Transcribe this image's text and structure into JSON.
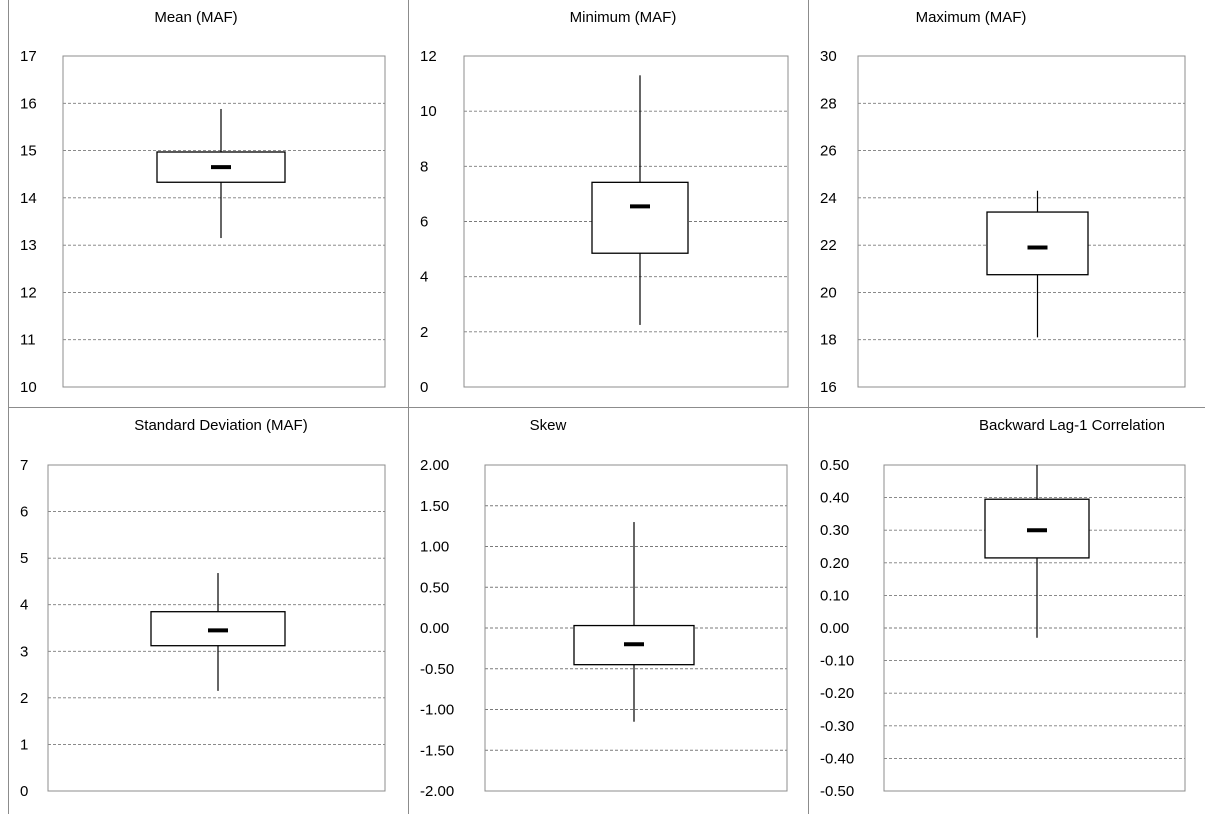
{
  "chart_data": [
    {
      "type": "box",
      "title": "Mean (MAF)",
      "ylim": [
        10,
        17
      ],
      "ticks": [
        "10",
        "11",
        "12",
        "13",
        "14",
        "15",
        "16",
        "17"
      ],
      "box": {
        "whisker_low": 13.15,
        "q1": 14.33,
        "median": 14.65,
        "q3": 14.97,
        "whisker_high": 15.88
      },
      "grid": true
    },
    {
      "type": "box",
      "title": "Minimum (MAF)",
      "ylim": [
        0,
        12
      ],
      "ticks": [
        "0",
        "2",
        "4",
        "6",
        "8",
        "10",
        "12"
      ],
      "box": {
        "whisker_low": 2.25,
        "q1": 4.85,
        "median": 6.55,
        "q3": 7.42,
        "whisker_high": 11.3
      },
      "grid": true
    },
    {
      "type": "box",
      "title": "Maximum (MAF)",
      "ylim": [
        16,
        30
      ],
      "ticks": [
        "16",
        "18",
        "20",
        "22",
        "24",
        "26",
        "28",
        "30"
      ],
      "box": {
        "whisker_low": 18.1,
        "q1": 20.75,
        "median": 21.9,
        "q3": 23.4,
        "whisker_high": 24.3
      },
      "grid": true
    },
    {
      "type": "box",
      "title": "Standard Deviation (MAF)",
      "ylim": [
        0,
        7
      ],
      "ticks": [
        "0",
        "1",
        "2",
        "3",
        "4",
        "5",
        "6",
        "7"
      ],
      "box": {
        "whisker_low": 2.15,
        "q1": 3.12,
        "median": 3.45,
        "q3": 3.85,
        "whisker_high": 4.68
      },
      "grid": true
    },
    {
      "type": "box",
      "title": "Skew",
      "ylim": [
        -2.0,
        2.0
      ],
      "ticks": [
        "-2.00",
        "-1.50",
        "-1.00",
        "-0.50",
        "0.00",
        "0.50",
        "1.00",
        "1.50",
        "2.00"
      ],
      "box": {
        "whisker_low": -1.15,
        "q1": -0.45,
        "median": -0.2,
        "q3": 0.03,
        "whisker_high": 1.3
      },
      "grid": true
    },
    {
      "type": "box",
      "title": "Backward Lag-1 Correlation",
      "ylim": [
        -0.5,
        0.5
      ],
      "ticks": [
        "-0.50",
        "-0.40",
        "-0.30",
        "-0.20",
        "-0.10",
        "0.00",
        "0.10",
        "0.20",
        "0.30",
        "0.40",
        "0.50"
      ],
      "box": {
        "whisker_low": -0.03,
        "q1": 0.215,
        "median": 0.3,
        "q3": 0.395,
        "whisker_high": 0.5
      },
      "grid": true
    }
  ]
}
